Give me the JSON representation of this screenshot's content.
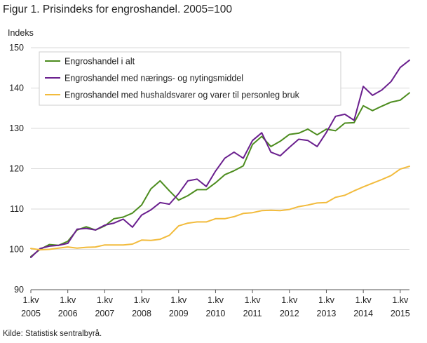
{
  "title": "Figur 1. Prisindeks for engroshandel. 2005=100",
  "source": "Kilde: Statistisk sentralbyrå.",
  "chart_data": {
    "type": "line",
    "ylabel": "Indeks",
    "ylim": [
      90,
      150
    ],
    "yticks": [
      90,
      100,
      110,
      120,
      130,
      140,
      150
    ],
    "xlim": [
      0,
      41
    ],
    "xtick_labels": [
      {
        "q": "1.kv",
        "year": "2005"
      },
      {
        "q": "1.kv",
        "year": "2006"
      },
      {
        "q": "1.kv",
        "year": "2007"
      },
      {
        "q": "1.kv",
        "year": "2008"
      },
      {
        "q": "1.kv",
        "year": "2009"
      },
      {
        "q": "1.kv",
        "year": "2010"
      },
      {
        "q": "1.kv",
        "year": "2011"
      },
      {
        "q": "1.kv",
        "year": "2012"
      },
      {
        "q": "1.kv",
        "year": "2013"
      },
      {
        "q": "1.kv",
        "year": "2014"
      },
      {
        "q": "1.kv",
        "year": "2015"
      }
    ],
    "grid": true,
    "legend_position": "top-left",
    "series": [
      {
        "name": "Engroshandel i alt",
        "color": "#4c8c1e",
        "values": [
          98.2,
          100.0,
          101.2,
          101.0,
          102.0,
          104.8,
          105.6,
          104.8,
          105.8,
          107.6,
          108.0,
          109.0,
          111.0,
          115.0,
          117.0,
          114.5,
          112.2,
          113.3,
          114.8,
          114.8,
          116.5,
          118.5,
          119.5,
          120.7,
          126.0,
          128.0,
          125.5,
          126.8,
          128.5,
          128.8,
          129.8,
          128.4,
          129.8,
          129.4,
          131.3,
          131.4,
          135.6,
          134.4,
          135.5,
          136.5,
          137.0,
          138.8
        ]
      },
      {
        "name": "Engroshandel med nærings- og nytingsmiddel",
        "color": "#6a1f8e",
        "values": [
          98.0,
          100.2,
          100.8,
          101.0,
          101.5,
          105.0,
          105.2,
          104.8,
          106.0,
          106.5,
          107.5,
          105.5,
          108.5,
          109.8,
          111.6,
          111.2,
          113.8,
          117.0,
          117.4,
          115.6,
          119.4,
          122.6,
          124.1,
          122.6,
          127.0,
          128.9,
          124.1,
          123.2,
          125.3,
          127.3,
          127.0,
          125.5,
          129.0,
          133.0,
          133.5,
          132.0,
          140.4,
          138.2,
          139.5,
          141.6,
          145.1,
          146.9
        ]
      },
      {
        "name": "Engroshandel med hushaldsvarer og varer til personleg bruk",
        "color": "#f2bb3c",
        "values": [
          100.2,
          99.9,
          100.0,
          100.3,
          100.6,
          100.3,
          100.5,
          100.6,
          101.1,
          101.1,
          101.1,
          101.3,
          102.3,
          102.2,
          102.5,
          103.5,
          105.8,
          106.5,
          106.8,
          106.8,
          107.6,
          107.6,
          108.1,
          108.9,
          109.1,
          109.6,
          109.7,
          109.6,
          109.9,
          110.6,
          111.0,
          111.5,
          111.6,
          112.9,
          113.4,
          114.5,
          115.5,
          116.4,
          117.3,
          118.3,
          119.9,
          120.6
        ]
      }
    ]
  }
}
